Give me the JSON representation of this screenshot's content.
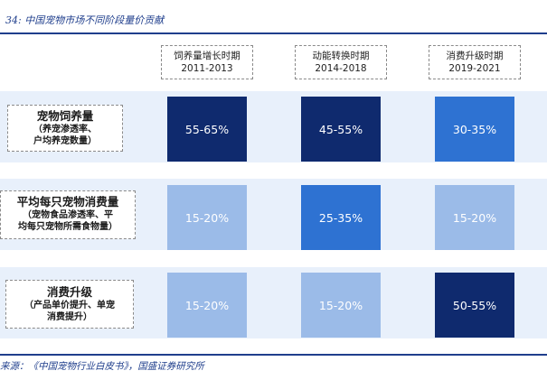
{
  "header": {
    "title": "34:  中国宠物市场不同阶段量价贡献"
  },
  "columns": [
    {
      "name": "饲养量增长时期",
      "years": "2011-2013"
    },
    {
      "name": "动能转换时期",
      "years": "2014-2018"
    },
    {
      "name": "消费升级时期",
      "years": "2019-2021"
    }
  ],
  "rows": [
    {
      "label": "宠物饲养量",
      "sub_lines": [
        "（养宠渗透率、",
        "户均养宠数量）"
      ],
      "cells": [
        {
          "value": "55-65%",
          "color": "#0f2a6e"
        },
        {
          "value": "45-55%",
          "color": "#0f2a6e"
        },
        {
          "value": "30-35%",
          "color": "#2e72d2"
        }
      ]
    },
    {
      "label": "平均每只宠物消费量",
      "sub_lines": [
        "（宠物食品渗透率、平",
        "均每只宠物所需食物量）"
      ],
      "cells": [
        {
          "value": "15-20%",
          "color": "#9bbbe8"
        },
        {
          "value": "25-35%",
          "color": "#2e72d2"
        },
        {
          "value": "15-20%",
          "color": "#9bbbe8"
        }
      ]
    },
    {
      "label": "消费升级",
      "sub_lines": [
        "（产品单价提升、单宠",
        "消费提升）"
      ],
      "cells": [
        {
          "value": "15-20%",
          "color": "#9bbbe8"
        },
        {
          "value": "15-20%",
          "color": "#9bbbe8"
        },
        {
          "value": "50-55%",
          "color": "#0f2a6e"
        }
      ]
    }
  ],
  "footer": {
    "source": "来源：《中国宠物行业白皮书》，国盛证券研究所"
  }
}
